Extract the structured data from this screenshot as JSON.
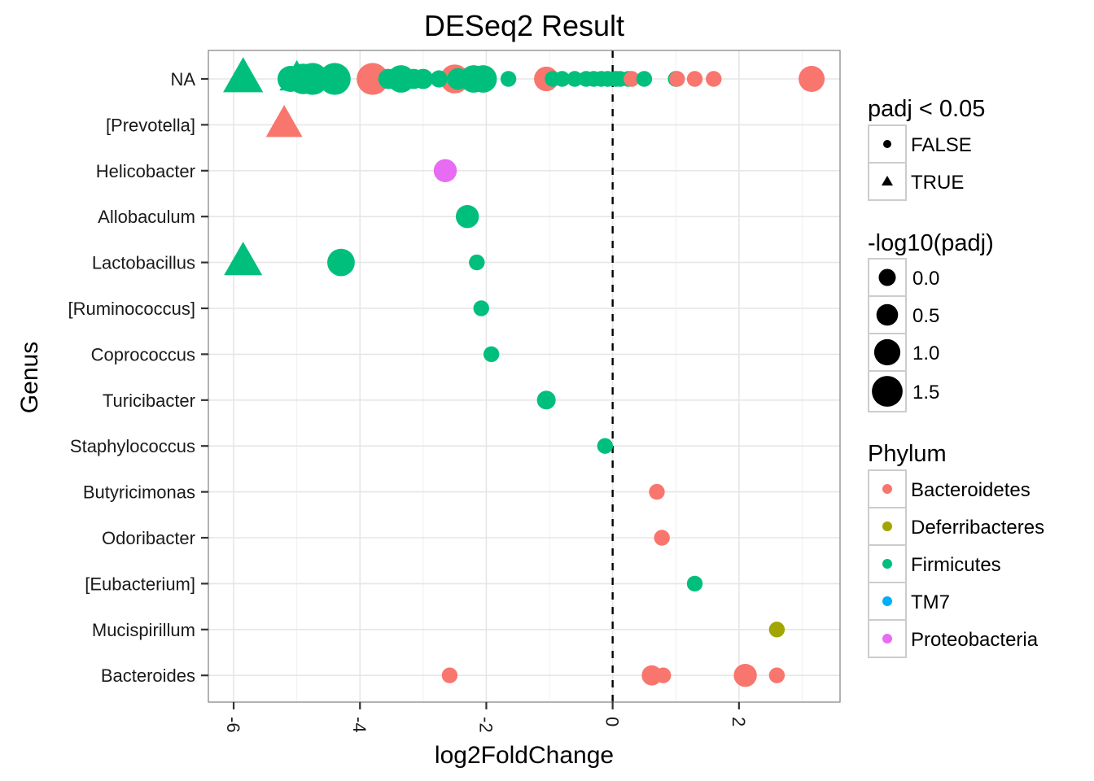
{
  "chart_data": {
    "type": "scatter",
    "title": "DESeq2 Result",
    "xlabel": "log2FoldChange",
    "ylabel": "Genus",
    "xlim": [
      -6.4,
      3.6
    ],
    "x_ticks": [
      -6,
      -4,
      -2,
      0,
      2
    ],
    "x_tick_labels": [
      "-6",
      "-4",
      "-2",
      "0",
      "2"
    ],
    "reference_line": {
      "x": 0,
      "style": "dashed"
    },
    "categories": [
      "NA",
      "[Prevotella]",
      "Helicobacter",
      "Allobaculum",
      "Lactobacillus",
      "[Ruminococcus]",
      "Coprococcus",
      "Turicibacter",
      "Staphylococcus",
      "Butyricimonas",
      "Odoribacter",
      "[Eubacterium]",
      "Mucispirillum",
      "Bacteroides"
    ],
    "grid": true,
    "legends": {
      "shape": {
        "title": "padj < 0.05",
        "entries": [
          {
            "label": "FALSE",
            "shape": "circle"
          },
          {
            "label": "TRUE",
            "shape": "triangle"
          }
        ]
      },
      "size": {
        "title": "-log10(padj)",
        "entries": [
          {
            "label": "0.0",
            "value": 0.0
          },
          {
            "label": "0.5",
            "value": 0.5
          },
          {
            "label": "1.0",
            "value": 1.0
          },
          {
            "label": "1.5",
            "value": 1.5
          }
        ]
      },
      "color": {
        "title": "Phylum",
        "entries": [
          {
            "label": "Bacteroidetes",
            "color": "#F8766D"
          },
          {
            "label": "Deferribacteres",
            "color": "#A3A500"
          },
          {
            "label": "Firmicutes",
            "color": "#00BF7D"
          },
          {
            "label": "TM7",
            "color": "#00B0F6"
          },
          {
            "label": "Proteobacteria",
            "color": "#E76BF3"
          }
        ]
      }
    },
    "points": [
      {
        "genus": "NA",
        "x": -5.85,
        "phylum": "Firmicutes",
        "padj_sig": true,
        "size": 1.5
      },
      {
        "genus": "NA",
        "x": -5.0,
        "phylum": "Firmicutes",
        "padj_sig": true,
        "size": 1.2
      },
      {
        "genus": "NA",
        "x": -5.1,
        "phylum": "Firmicutes",
        "padj_sig": false,
        "size": 1.0
      },
      {
        "genus": "NA",
        "x": -4.9,
        "phylum": "Firmicutes",
        "padj_sig": false,
        "size": 1.3
      },
      {
        "genus": "NA",
        "x": -4.75,
        "phylum": "Firmicutes",
        "padj_sig": false,
        "size": 1.4
      },
      {
        "genus": "NA",
        "x": -4.4,
        "phylum": "Firmicutes",
        "padj_sig": false,
        "size": 1.4
      },
      {
        "genus": "NA",
        "x": -3.8,
        "phylum": "Bacteroidetes",
        "padj_sig": false,
        "size": 1.4
      },
      {
        "genus": "NA",
        "x": -3.35,
        "phylum": "Firmicutes",
        "padj_sig": false,
        "size": 1.1
      },
      {
        "genus": "NA",
        "x": -3.55,
        "phylum": "Firmicutes",
        "padj_sig": false,
        "size": 0.6
      },
      {
        "genus": "NA",
        "x": -3.15,
        "phylum": "Firmicutes",
        "padj_sig": false,
        "size": 0.6
      },
      {
        "genus": "NA",
        "x": -3.0,
        "phylum": "Firmicutes",
        "padj_sig": false,
        "size": 0.6
      },
      {
        "genus": "NA",
        "x": -2.75,
        "phylum": "Firmicutes",
        "padj_sig": false,
        "size": 0.4
      },
      {
        "genus": "NA",
        "x": -2.5,
        "phylum": "Bacteroidetes",
        "padj_sig": false,
        "size": 1.2
      },
      {
        "genus": "NA",
        "x": -2.45,
        "phylum": "Firmicutes",
        "padj_sig": false,
        "size": 0.7
      },
      {
        "genus": "NA",
        "x": -2.2,
        "phylum": "Firmicutes",
        "padj_sig": false,
        "size": 1.1
      },
      {
        "genus": "NA",
        "x": -2.05,
        "phylum": "Firmicutes",
        "padj_sig": false,
        "size": 1.1
      },
      {
        "genus": "NA",
        "x": -1.65,
        "phylum": "Firmicutes",
        "padj_sig": false,
        "size": 0.3
      },
      {
        "genus": "NA",
        "x": -1.05,
        "phylum": "Bacteroidetes",
        "padj_sig": false,
        "size": 0.9
      },
      {
        "genus": "NA",
        "x": -0.95,
        "phylum": "Firmicutes",
        "padj_sig": false,
        "size": 0.3
      },
      {
        "genus": "NA",
        "x": -0.8,
        "phylum": "Firmicutes",
        "padj_sig": false,
        "size": 0.3
      },
      {
        "genus": "NA",
        "x": -0.6,
        "phylum": "Firmicutes",
        "padj_sig": false,
        "size": 0.3
      },
      {
        "genus": "NA",
        "x": -0.42,
        "phylum": "Firmicutes",
        "padj_sig": false,
        "size": 0.3
      },
      {
        "genus": "NA",
        "x": -0.3,
        "phylum": "Firmicutes",
        "padj_sig": false,
        "size": 0.3
      },
      {
        "genus": "NA",
        "x": -0.18,
        "phylum": "Firmicutes",
        "padj_sig": false,
        "size": 0.3
      },
      {
        "genus": "NA",
        "x": -0.08,
        "phylum": "Firmicutes",
        "padj_sig": false,
        "size": 0.3
      },
      {
        "genus": "NA",
        "x": 0.05,
        "phylum": "Firmicutes",
        "padj_sig": false,
        "size": 0.3
      },
      {
        "genus": "NA",
        "x": 0.12,
        "phylum": "Firmicutes",
        "padj_sig": false,
        "size": 0.3
      },
      {
        "genus": "NA",
        "x": 0.25,
        "phylum": "Firmicutes",
        "padj_sig": false,
        "size": 0.3
      },
      {
        "genus": "NA",
        "x": 0.3,
        "phylum": "Bacteroidetes",
        "padj_sig": false,
        "size": 0.3
      },
      {
        "genus": "NA",
        "x": 0.5,
        "phylum": "Firmicutes",
        "padj_sig": false,
        "size": 0.3
      },
      {
        "genus": "NA",
        "x": 1.0,
        "phylum": "Firmicutes",
        "padj_sig": false,
        "size": 0.3
      },
      {
        "genus": "NA",
        "x": 1.02,
        "phylum": "Bacteroidetes",
        "padj_sig": false,
        "size": 0.3
      },
      {
        "genus": "NA",
        "x": 1.3,
        "phylum": "Bacteroidetes",
        "padj_sig": false,
        "size": 0.3
      },
      {
        "genus": "NA",
        "x": 1.6,
        "phylum": "Bacteroidetes",
        "padj_sig": false,
        "size": 0.3
      },
      {
        "genus": "NA",
        "x": 3.15,
        "phylum": "Bacteroidetes",
        "padj_sig": false,
        "size": 1.0
      },
      {
        "genus": "[Prevotella]",
        "x": -5.2,
        "phylum": "Bacteroidetes",
        "padj_sig": true,
        "size": 1.3
      },
      {
        "genus": "Helicobacter",
        "x": -2.65,
        "phylum": "Proteobacteria",
        "padj_sig": false,
        "size": 0.8
      },
      {
        "genus": "Allobaculum",
        "x": -2.3,
        "phylum": "Firmicutes",
        "padj_sig": false,
        "size": 0.8
      },
      {
        "genus": "Lactobacillus",
        "x": -5.85,
        "phylum": "Firmicutes",
        "padj_sig": true,
        "size": 1.4
      },
      {
        "genus": "Lactobacillus",
        "x": -4.3,
        "phylum": "Firmicutes",
        "padj_sig": false,
        "size": 1.1
      },
      {
        "genus": "Lactobacillus",
        "x": -2.15,
        "phylum": "Firmicutes",
        "padj_sig": false,
        "size": 0.3
      },
      {
        "genus": "[Ruminococcus]",
        "x": -2.08,
        "phylum": "Firmicutes",
        "padj_sig": false,
        "size": 0.3
      },
      {
        "genus": "Coprococcus",
        "x": -1.92,
        "phylum": "Firmicutes",
        "padj_sig": false,
        "size": 0.3
      },
      {
        "genus": "Turicibacter",
        "x": -1.05,
        "phylum": "Firmicutes",
        "padj_sig": false,
        "size": 0.5
      },
      {
        "genus": "Staphylococcus",
        "x": -0.12,
        "phylum": "Firmicutes",
        "padj_sig": false,
        "size": 0.3
      },
      {
        "genus": "Butyricimonas",
        "x": 0.7,
        "phylum": "Bacteroidetes",
        "padj_sig": false,
        "size": 0.3
      },
      {
        "genus": "Odoribacter",
        "x": 0.78,
        "phylum": "Bacteroidetes",
        "padj_sig": false,
        "size": 0.3
      },
      {
        "genus": "[Eubacterium]",
        "x": 1.3,
        "phylum": "Firmicutes",
        "padj_sig": false,
        "size": 0.3
      },
      {
        "genus": "Mucispirillum",
        "x": 2.6,
        "phylum": "Deferribacteres",
        "padj_sig": false,
        "size": 0.3
      },
      {
        "genus": "Bacteroides",
        "x": -2.58,
        "phylum": "Bacteroidetes",
        "padj_sig": false,
        "size": 0.3
      },
      {
        "genus": "Bacteroides",
        "x": 0.62,
        "phylum": "Bacteroidetes",
        "padj_sig": false,
        "size": 0.6
      },
      {
        "genus": "Bacteroides",
        "x": 0.8,
        "phylum": "Bacteroidetes",
        "padj_sig": false,
        "size": 0.3
      },
      {
        "genus": "Bacteroides",
        "x": 2.1,
        "phylum": "Bacteroidetes",
        "padj_sig": false,
        "size": 0.8
      },
      {
        "genus": "Bacteroides",
        "x": 2.6,
        "phylum": "Bacteroidetes",
        "padj_sig": false,
        "size": 0.3
      }
    ]
  }
}
